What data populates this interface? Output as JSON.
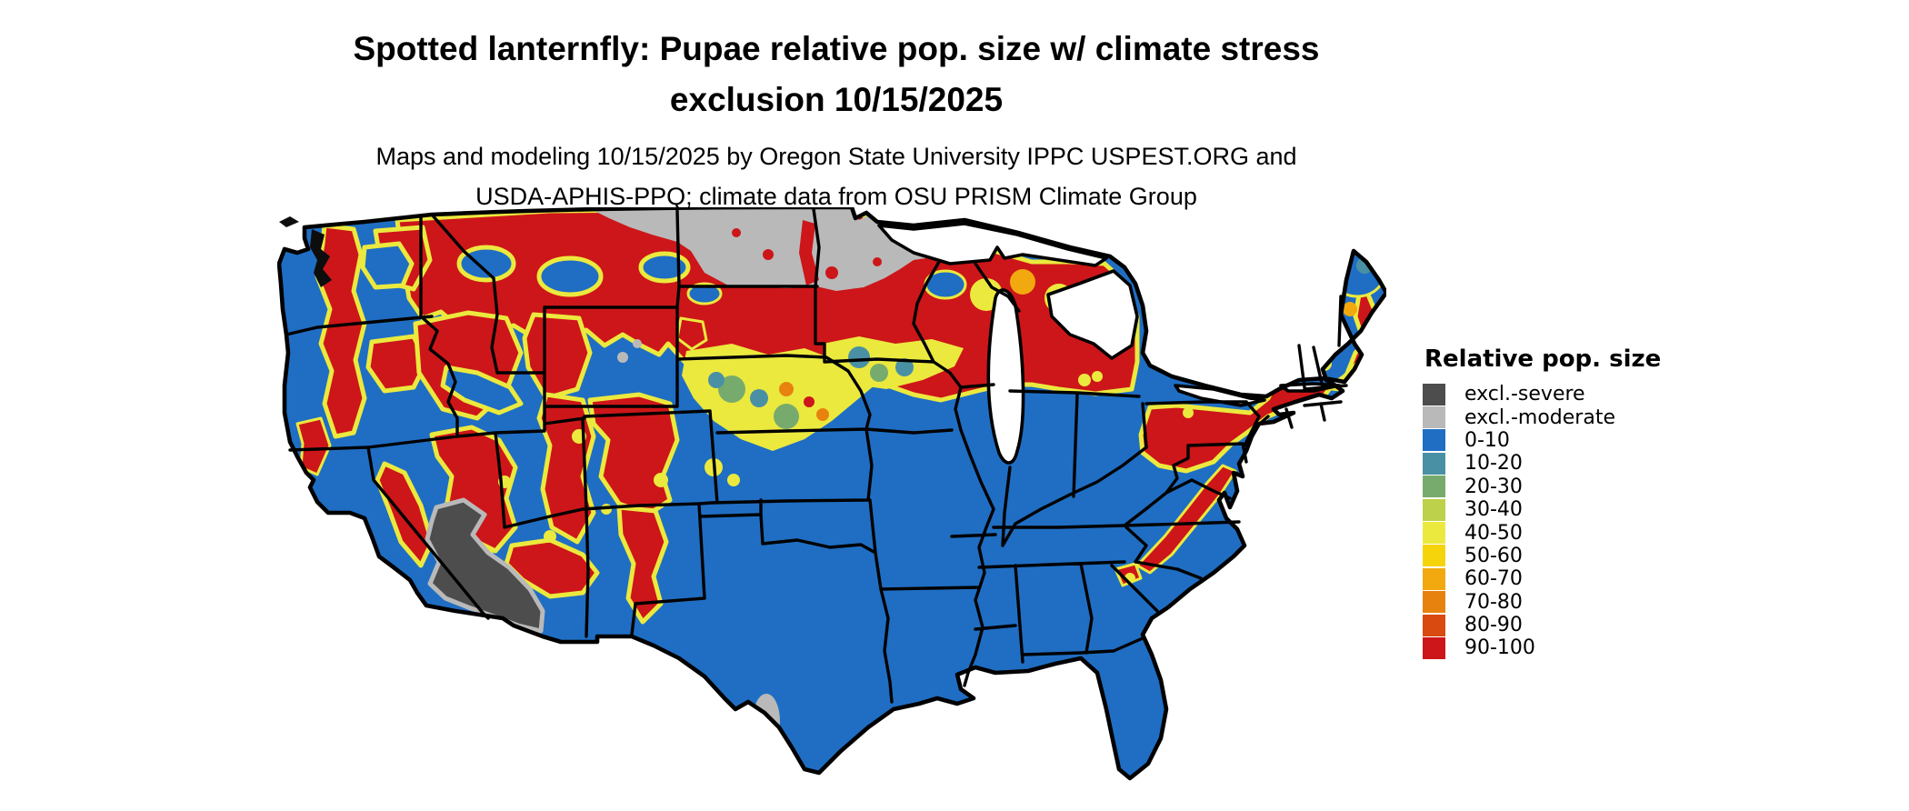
{
  "title": {
    "line1": "Spotted lanternfly: Pupae relative pop. size w/ climate stress",
    "line2": "exclusion 10/15/2025"
  },
  "subtitle": {
    "line1": "Maps and modeling 10/15/2025 by Oregon State University IPPC USPEST.ORG and",
    "line2": "USDA-APHIS-PPQ; climate data from OSU PRISM Climate Group"
  },
  "legend": {
    "title": "Relative pop. size",
    "items": [
      {
        "label": "excl.-severe",
        "color": "#4d4d4d"
      },
      {
        "label": "excl.-moderate",
        "color": "#b9b9b9"
      },
      {
        "label": "0-10",
        "color": "#1f6ec3"
      },
      {
        "label": "10-20",
        "color": "#4a90a4"
      },
      {
        "label": "20-30",
        "color": "#77ab6e"
      },
      {
        "label": "30-40",
        "color": "#bdd14b"
      },
      {
        "label": "40-50",
        "color": "#ebe93e"
      },
      {
        "label": "50-60",
        "color": "#f6d40c"
      },
      {
        "label": "60-70",
        "color": "#f2a90f"
      },
      {
        "label": "70-80",
        "color": "#e8820f"
      },
      {
        "label": "80-90",
        "color": "#d94a10"
      },
      {
        "label": "90-100",
        "color": "#cd1619"
      }
    ]
  },
  "map": {
    "region": "Contiguous United States",
    "colors": {
      "blue": "#1f6ec3",
      "teal": "#4a90a4",
      "green": "#77ab6e",
      "yellowGreen": "#bdd14b",
      "yellow": "#ebe93e",
      "gold": "#f6d40c",
      "orange": "#f2a90f",
      "orangeDeep": "#e8820f",
      "orangeRed": "#d94a10",
      "red": "#cd1619",
      "grayLight": "#b9b9b9",
      "grayDark": "#4d4d4d"
    }
  }
}
